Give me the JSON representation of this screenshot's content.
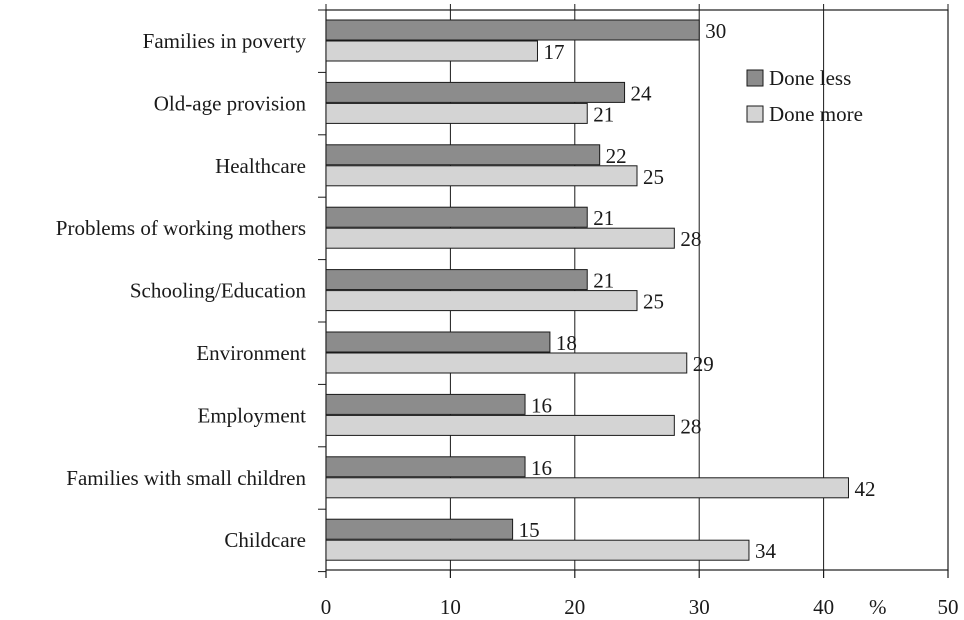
{
  "chart_data": {
    "type": "bar",
    "orientation": "horizontal",
    "categories": [
      "Families in poverty",
      "Old-age provision",
      "Healthcare",
      "Problems of working mothers",
      "Schooling/Education",
      "Environment",
      "Employment",
      "Families with small children",
      "Childcare"
    ],
    "series": [
      {
        "name": "Done less",
        "color": "#8c8c8c",
        "values": [
          30,
          24,
          22,
          21,
          21,
          18,
          16,
          16,
          15
        ]
      },
      {
        "name": "Done more",
        "color": "#d4d4d4",
        "values": [
          17,
          21,
          25,
          28,
          25,
          29,
          28,
          42,
          34
        ]
      }
    ],
    "x_ticks": [
      0,
      10,
      20,
      30,
      40,
      50
    ],
    "x_unit": "%",
    "xlim": [
      0,
      50
    ],
    "grid": "vertical",
    "legend_position": "top-right"
  }
}
